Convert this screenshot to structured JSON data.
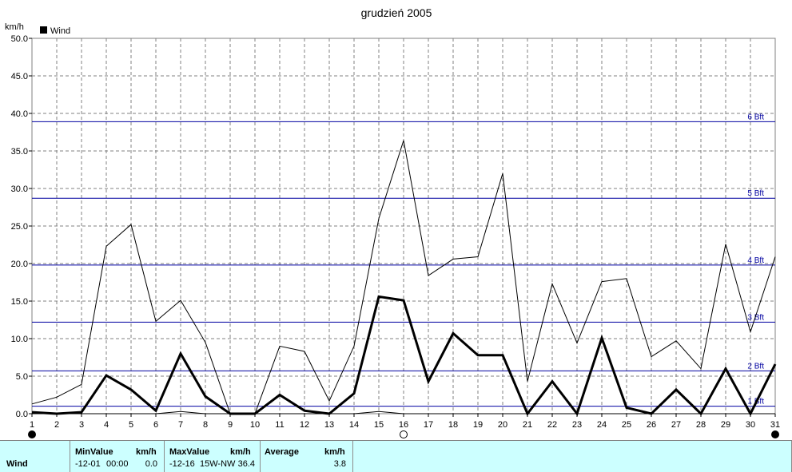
{
  "chart_data": {
    "type": "line",
    "title": "grudzień 2005",
    "ylabel": "km/h",
    "xlabel": "",
    "ylim": [
      0,
      50
    ],
    "yticks": [
      "0.0",
      "5.0",
      "10.0",
      "15.0",
      "20.0",
      "25.0",
      "30.0",
      "35.0",
      "40.0",
      "45.0",
      "50.0"
    ],
    "x": [
      1,
      2,
      3,
      4,
      5,
      6,
      7,
      8,
      9,
      10,
      11,
      12,
      13,
      14,
      15,
      16,
      17,
      18,
      19,
      20,
      21,
      22,
      23,
      24,
      25,
      26,
      27,
      28,
      29,
      30,
      31
    ],
    "xticks": [
      "1",
      "2",
      "3",
      "4",
      "5",
      "6",
      "7",
      "8",
      "9",
      "10",
      "11",
      "12",
      "13",
      "14",
      "15",
      "16",
      "17",
      "18",
      "19",
      "20",
      "21",
      "22",
      "23",
      "24",
      "25",
      "26",
      "27",
      "28",
      "29",
      "30",
      "31"
    ],
    "grid": true,
    "legend": {
      "position": "top-left",
      "entries": [
        "Wind"
      ]
    },
    "series": [
      {
        "name": "Wind",
        "role": "gust",
        "color": "#000000",
        "width": 1,
        "values": [
          1.3,
          2.2,
          3.9,
          22.3,
          25.2,
          12.3,
          15.1,
          9.5,
          0.0,
          0.0,
          9.0,
          8.3,
          1.7,
          9.0,
          26.0,
          36.4,
          18.4,
          20.6,
          20.9,
          32.0,
          4.3,
          17.3,
          9.4,
          17.6,
          18.0,
          7.6,
          9.7,
          6.0,
          22.6,
          10.9,
          20.9
        ]
      },
      {
        "name": "Wind",
        "role": "average",
        "color": "#000000",
        "width": 3,
        "values": [
          0.2,
          0.0,
          0.2,
          5.1,
          3.2,
          0.4,
          8.0,
          2.3,
          0.0,
          0.0,
          2.5,
          0.4,
          0.0,
          2.7,
          15.6,
          15.1,
          4.3,
          10.7,
          7.8,
          7.8,
          0.0,
          4.3,
          0.0,
          10.1,
          0.8,
          0.0,
          3.2,
          0.0,
          6.0,
          0.0,
          6.6
        ]
      },
      {
        "name": "Wind",
        "role": "minimum",
        "color": "#000000",
        "width": 1,
        "values": [
          0.0,
          0.0,
          0.0,
          0.0,
          0.0,
          0.0,
          0.3,
          0.0,
          0.0,
          0.0,
          0.0,
          0.0,
          0.0,
          0.0,
          0.3,
          0.0,
          0.0,
          0.0,
          0.0,
          0.0,
          0.0,
          0.0,
          0.0,
          0.0,
          0.0,
          0.0,
          0.0,
          0.0,
          0.0,
          0.0,
          0.0
        ]
      }
    ],
    "reference_lines": [
      {
        "label": "1 Bft",
        "value": 1.0
      },
      {
        "label": "2 Bft",
        "value": 5.7
      },
      {
        "label": "3 Bft",
        "value": 12.2
      },
      {
        "label": "4 Bft",
        "value": 19.8
      },
      {
        "label": "5 Bft",
        "value": 28.7
      },
      {
        "label": "6 Bft",
        "value": 38.9
      }
    ],
    "reference_color": "#0000a0",
    "markers": [
      {
        "day": 1,
        "style": "filled"
      },
      {
        "day": 16,
        "style": "open"
      },
      {
        "day": 31,
        "style": "filled"
      }
    ]
  },
  "stats_table": {
    "row_label": "Wind",
    "min": {
      "title": "MinValue",
      "unit": "km/h",
      "date": "-12-01",
      "time": "00:00",
      "value": "0.0"
    },
    "max": {
      "title": "MaxValue",
      "unit": "km/h",
      "date": "-12-16",
      "direction": "15W-NW",
      "value": "36.4"
    },
    "avg": {
      "title": "Average",
      "unit": "km/h",
      "value": "3.8"
    },
    "background": "#ccffff"
  }
}
